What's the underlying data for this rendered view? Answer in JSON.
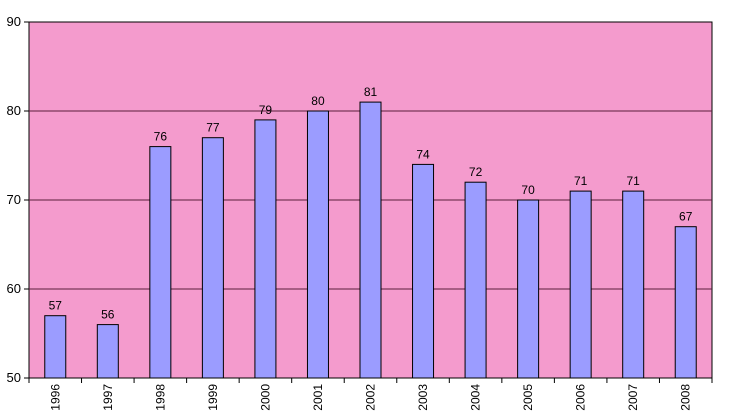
{
  "chart_data": {
    "type": "bar",
    "categories": [
      "1996",
      "1997",
      "1998",
      "1999",
      "2000",
      "2001",
      "2002",
      "2003",
      "2004",
      "2005",
      "2006",
      "2007",
      "2008"
    ],
    "values": [
      57,
      56,
      76,
      77,
      79,
      80,
      81,
      74,
      72,
      70,
      71,
      71,
      67
    ],
    "data_labels": [
      "57",
      "56",
      "76",
      "77",
      "79",
      "80",
      "81",
      "74",
      "72",
      "70",
      "71",
      "71",
      "67"
    ],
    "yticks": [
      "50",
      "60",
      "70",
      "80",
      "90"
    ],
    "ylim": [
      50,
      90
    ],
    "grid": true,
    "legend": "none",
    "title": "",
    "xlabel": "",
    "ylabel": "",
    "colors": {
      "plot_background": "#f49bcd",
      "bar_fill": "#9b9cff",
      "bar_stroke": "#000000",
      "gridline": "#5a1f3c",
      "axis": "#000000"
    }
  }
}
